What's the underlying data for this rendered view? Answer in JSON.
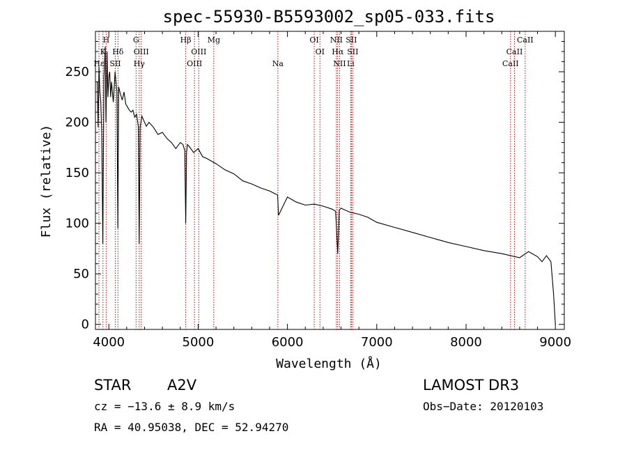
{
  "chart_data": {
    "type": "line",
    "title": "spec-55930-B5593002_sp05-033.fits",
    "xlabel": "Wavelength (Å)",
    "ylabel": "Flux (relative)",
    "xlim": [
      3850,
      9100
    ],
    "ylim": [
      -5,
      290
    ],
    "xticks": [
      4000,
      5000,
      6000,
      7000,
      8000,
      9000
    ],
    "yticks": [
      0,
      50,
      100,
      150,
      200,
      250
    ],
    "series": [
      {
        "name": "spectrum",
        "x": [
          3870,
          3880,
          3890,
          3900,
          3910,
          3920,
          3933,
          3945,
          3960,
          3968,
          3980,
          3990,
          4000,
          4010,
          4020,
          4030,
          4050,
          4070,
          4090,
          4101,
          4110,
          4130,
          4150,
          4170,
          4190,
          4210,
          4230,
          4250,
          4270,
          4290,
          4310,
          4330,
          4340,
          4350,
          4370,
          4390,
          4420,
          4450,
          4500,
          4550,
          4600,
          4650,
          4700,
          4750,
          4800,
          4830,
          4850,
          4861,
          4870,
          4880,
          4900,
          4950,
          5000,
          5050,
          5100,
          5200,
          5300,
          5400,
          5500,
          5600,
          5700,
          5800,
          5890,
          5900,
          6000,
          6100,
          6200,
          6300,
          6400,
          6500,
          6540,
          6563,
          6580,
          6600,
          6700,
          6800,
          6900,
          7000,
          7200,
          7400,
          7600,
          7800,
          8000,
          8200,
          8400,
          8600,
          8700,
          8800,
          8850,
          8900,
          8950,
          8980,
          9000
        ],
        "y": [
          240,
          195,
          255,
          230,
          220,
          190,
          80,
          245,
          275,
          200,
          270,
          225,
          245,
          250,
          225,
          240,
          220,
          250,
          230,
          95,
          235,
          228,
          222,
          230,
          218,
          215,
          212,
          210,
          212,
          205,
          208,
          196,
          80,
          195,
          206,
          202,
          196,
          200,
          195,
          188,
          190,
          184,
          180,
          174,
          180,
          178,
          172,
          100,
          170,
          178,
          176,
          170,
          174,
          166,
          164,
          159,
          153,
          149,
          142,
          139,
          135,
          132,
          128,
          108,
          126,
          121,
          118,
          119,
          117,
          114,
          112,
          70,
          113,
          115,
          111,
          109,
          106,
          101,
          96,
          91,
          86,
          81,
          77,
          73,
          70,
          66,
          72,
          67,
          62,
          68,
          62,
          30,
          0
        ]
      }
    ],
    "line_markers": {
      "row1": [
        {
          "label": "H",
          "x": 3970
        },
        {
          "label": "G",
          "x": 4305
        },
        {
          "label": "Hβ",
          "x": 4861
        },
        {
          "label": "Mg",
          "x": 5175
        },
        {
          "label": "OI",
          "x": 6300
        },
        {
          "label": "NII",
          "x": 6548
        },
        {
          "label": "SII",
          "x": 6716
        },
        {
          "label": "CaII",
          "x": 8662
        }
      ],
      "row2": [
        {
          "label": "K",
          "x": 3934
        },
        {
          "label": "Hδ",
          "x": 4102
        },
        {
          "label": "OIII",
          "x": 4363
        },
        {
          "label": "OIII",
          "x": 5007
        },
        {
          "label": "OI",
          "x": 6364
        },
        {
          "label": "Hα",
          "x": 6563
        },
        {
          "label": "SII",
          "x": 6731
        },
        {
          "label": "CaII",
          "x": 8542
        }
      ],
      "row3": [
        {
          "label": "Hε",
          "x": 3889
        },
        {
          "label": "SII",
          "x": 4072
        },
        {
          "label": "Hγ",
          "x": 4340
        },
        {
          "label": "OIII",
          "x": 4959
        },
        {
          "label": "Na",
          "x": 5893
        },
        {
          "label": "NII",
          "x": 6584
        },
        {
          "label": "Li",
          "x": 6708
        },
        {
          "label": "CaII",
          "x": 8498
        }
      ]
    }
  },
  "info": {
    "object_class": "STAR",
    "subclass": "A2V",
    "survey": "LAMOST DR3",
    "cz": "cz = −13.6 ± 8.9 km/s",
    "obs_date": "Obs−Date: 20120103",
    "radec": "RA =  40.95038, DEC =  52.94270"
  },
  "colors": {
    "spectrum": "#000000",
    "marker": "#c00000",
    "axis": "#000000"
  }
}
